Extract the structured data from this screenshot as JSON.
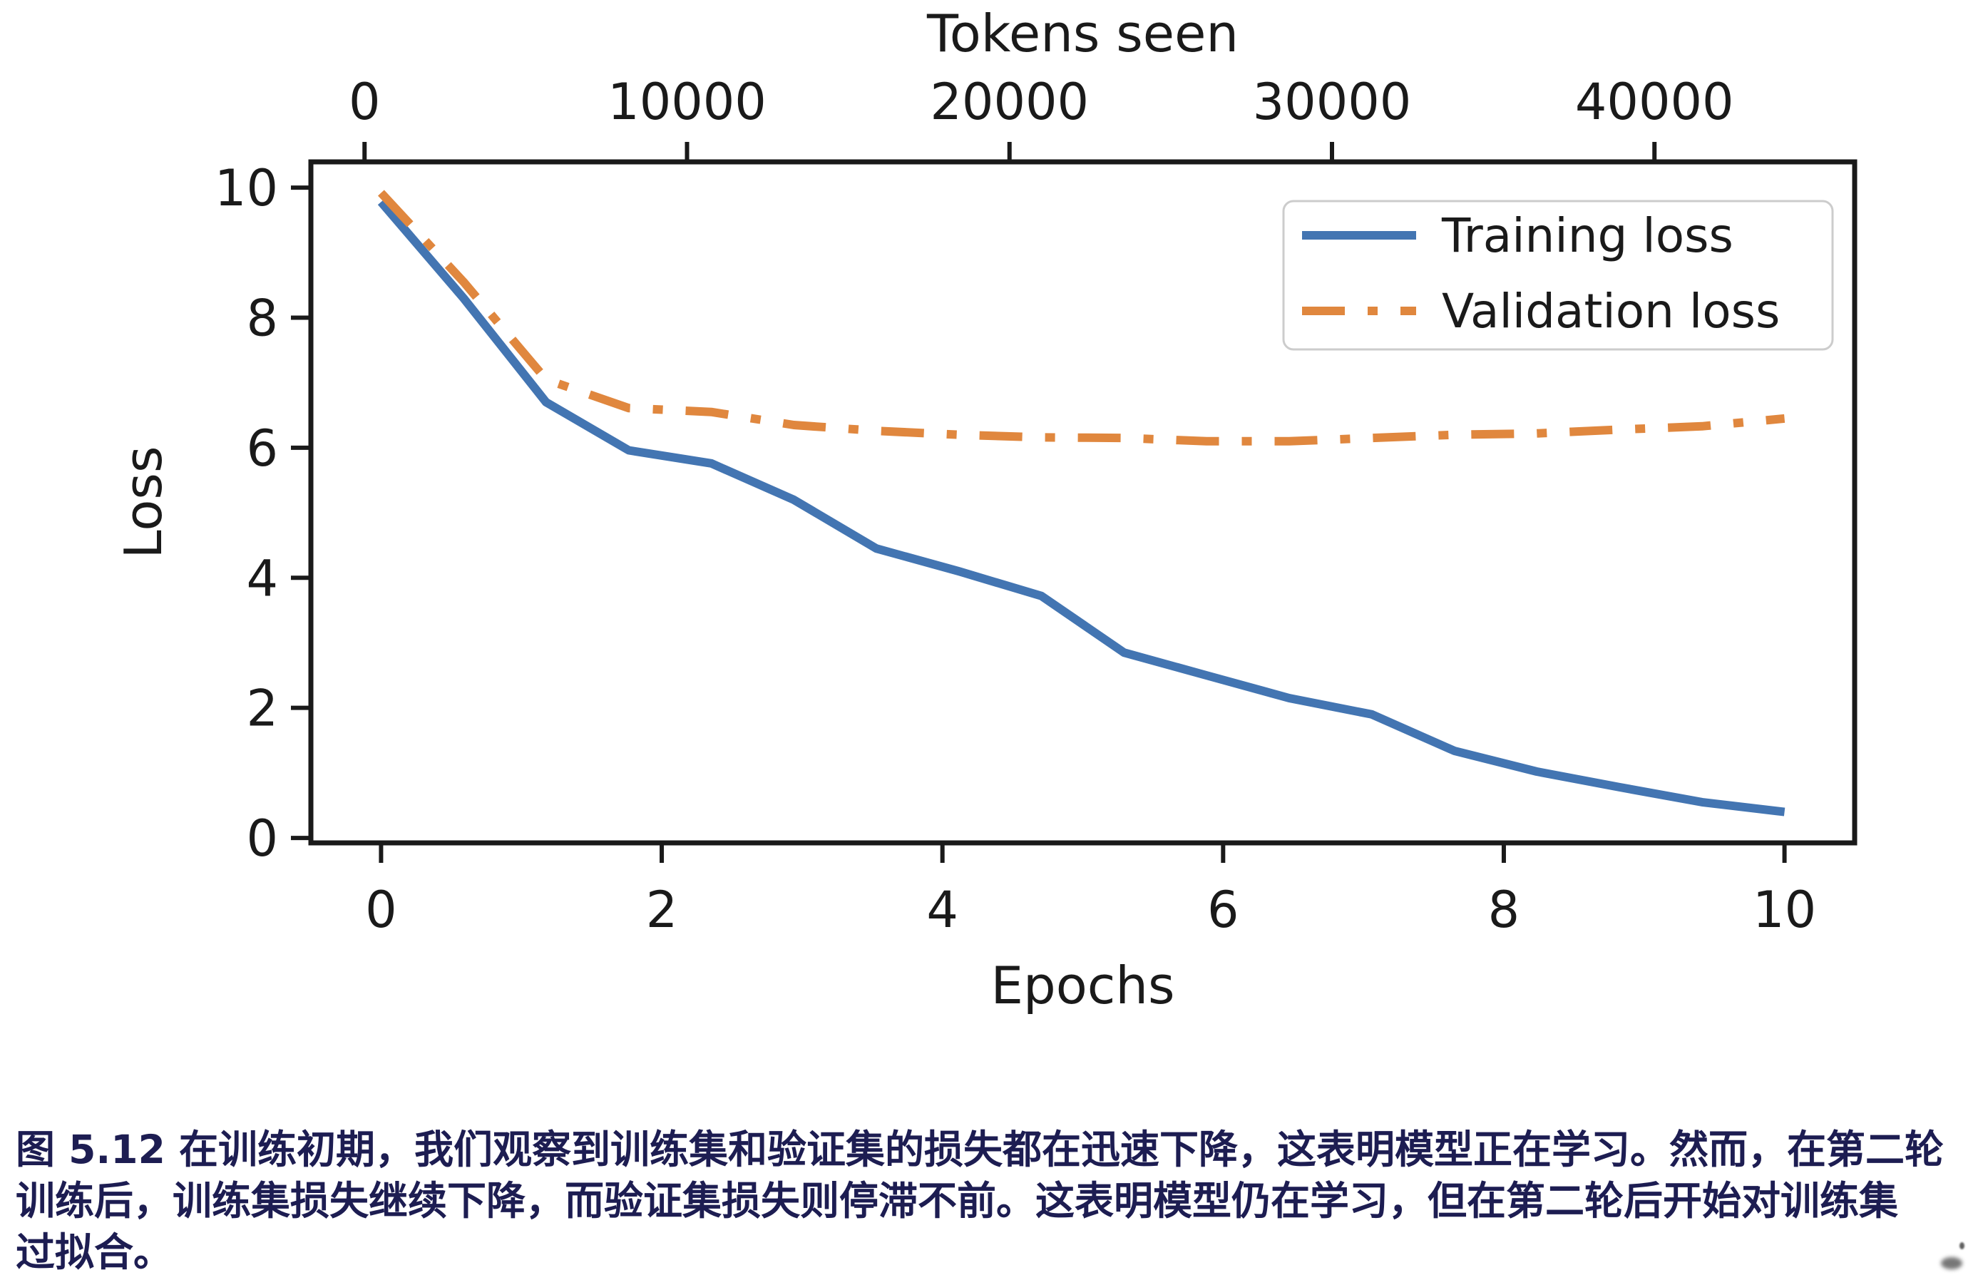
{
  "chart_data": {
    "type": "line",
    "title": "",
    "xlabel": "Epochs",
    "ylabel": "Loss",
    "top_xlabel": "Tokens seen",
    "x_epochs": [
      0,
      0.588,
      1.176,
      1.765,
      2.353,
      2.941,
      3.529,
      4.118,
      4.706,
      5.294,
      5.882,
      6.471,
      7.059,
      7.647,
      8.235,
      8.824,
      9.412,
      10.0
    ],
    "tokens_seen": [
      512,
      3072,
      5632,
      8192,
      10752,
      13312,
      15872,
      18432,
      20992,
      23552,
      26112,
      28672,
      31232,
      33792,
      36352,
      38912,
      41472,
      44032
    ],
    "series": [
      {
        "name": "Training loss",
        "color": "#4375b2",
        "style": "solid",
        "values": [
          9.78,
          8.3,
          6.7,
          5.96,
          5.76,
          5.2,
          4.45,
          4.1,
          3.72,
          2.85,
          2.5,
          2.15,
          1.9,
          1.34,
          1.02,
          0.78,
          0.55,
          0.4
        ]
      },
      {
        "name": "Validation loss",
        "color": "#e0873e",
        "style": "dashdot",
        "values": [
          9.92,
          8.55,
          7.05,
          6.61,
          6.55,
          6.35,
          6.26,
          6.2,
          6.16,
          6.15,
          6.1,
          6.1,
          6.15,
          6.2,
          6.22,
          6.28,
          6.33,
          6.45
        ]
      }
    ],
    "x_axis_ticks": [
      0,
      2,
      4,
      6,
      8,
      10
    ],
    "y_axis_ticks": [
      0,
      2,
      4,
      6,
      8,
      10
    ],
    "top_axis_ticks": [
      0,
      10000,
      20000,
      30000,
      40000
    ],
    "xlim": [
      -0.5,
      10.5
    ],
    "ylim": [
      -0.076,
      10.396
    ],
    "grid": false,
    "legend_position": "upper right"
  },
  "legend": {
    "items": [
      {
        "label": "Training loss"
      },
      {
        "label": "Validation loss"
      }
    ]
  },
  "caption": {
    "lines": [
      "图 5.12 在训练初期，我们观察到训练集和验证集的损失都在迅速下降，这表明模型正在学习。然而，在第二轮",
      "训练后，训练集损失继续下降，而验证集损失则停滞不前。这表明模型仍在学习，但在第二轮后开始对训练集",
      "过拟合。"
    ]
  },
  "colors": {
    "training_line": "#4375b2",
    "validation_line": "#e0873e",
    "axis": "#1a1a1a",
    "legend_border": "#cccccc",
    "caption_text": "#1d1d52",
    "background": "#ffffff"
  }
}
